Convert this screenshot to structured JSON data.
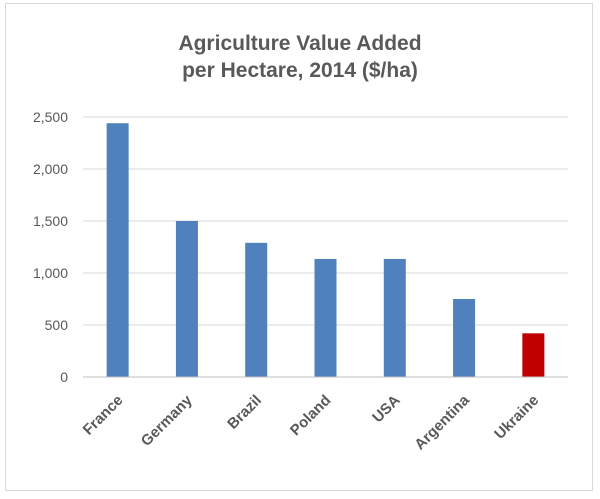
{
  "chart_data": {
    "type": "bar",
    "title_lines": [
      "Agriculture Value Added",
      "per Hectare, 2014 ($/ha)"
    ],
    "categories": [
      "France",
      "Germany",
      "Brazil",
      "Poland",
      "USA",
      "Argentina",
      "Ukraine"
    ],
    "values": [
      2440,
      1500,
      1290,
      1135,
      1135,
      750,
      420
    ],
    "colors": [
      "#4f81bd",
      "#4f81bd",
      "#4f81bd",
      "#4f81bd",
      "#4f81bd",
      "#4f81bd",
      "#c00000"
    ],
    "ylim": [
      0,
      2500
    ],
    "yticks": [
      0,
      500,
      1000,
      1500,
      2000,
      2500
    ],
    "ytick_labels": [
      "0",
      "500",
      "1,000",
      "1,500",
      "2,000",
      "2,500"
    ],
    "xlabel": "",
    "ylabel": "",
    "grid": true,
    "legend": "none"
  }
}
